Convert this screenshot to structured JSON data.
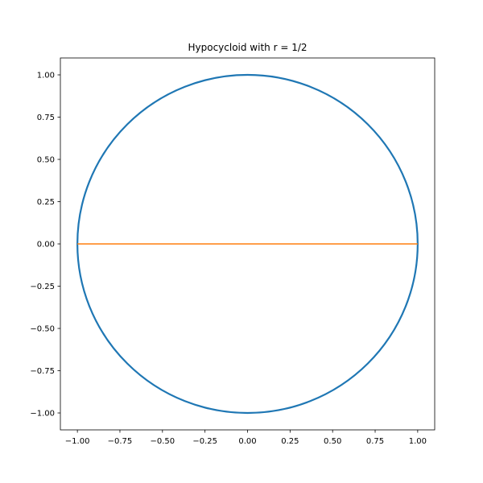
{
  "chart_data": {
    "type": "line",
    "title": "Hypocycloid with r = 1/2",
    "xlabel": "",
    "ylabel": "",
    "xlim": [
      -1.1,
      1.1
    ],
    "ylim": [
      -1.1,
      1.1
    ],
    "x_ticks": [
      -1.0,
      -0.75,
      -0.5,
      -0.25,
      0.0,
      0.25,
      0.5,
      0.75,
      1.0
    ],
    "x_tick_labels": [
      "−1.00",
      "−0.75",
      "−0.50",
      "−0.25",
      "0.00",
      "0.25",
      "0.50",
      "0.75",
      "1.00"
    ],
    "y_ticks": [
      1.0,
      0.75,
      0.5,
      0.25,
      0.0,
      -0.25,
      -0.5,
      -0.75,
      -1.0
    ],
    "y_tick_labels": [
      "1.00",
      "0.75",
      "0.50",
      "0.25",
      "0.00",
      "−0.25",
      "−0.50",
      "−0.75",
      "−1.00"
    ],
    "grid": false,
    "series": [
      {
        "color": "#1f77b4",
        "shape": "circle",
        "center": [
          0,
          0
        ],
        "radius": 1.0
      },
      {
        "color": "#ff7f0e",
        "x": [
          -1.0,
          1.0
        ],
        "y": [
          0.0,
          0.0
        ]
      }
    ]
  }
}
